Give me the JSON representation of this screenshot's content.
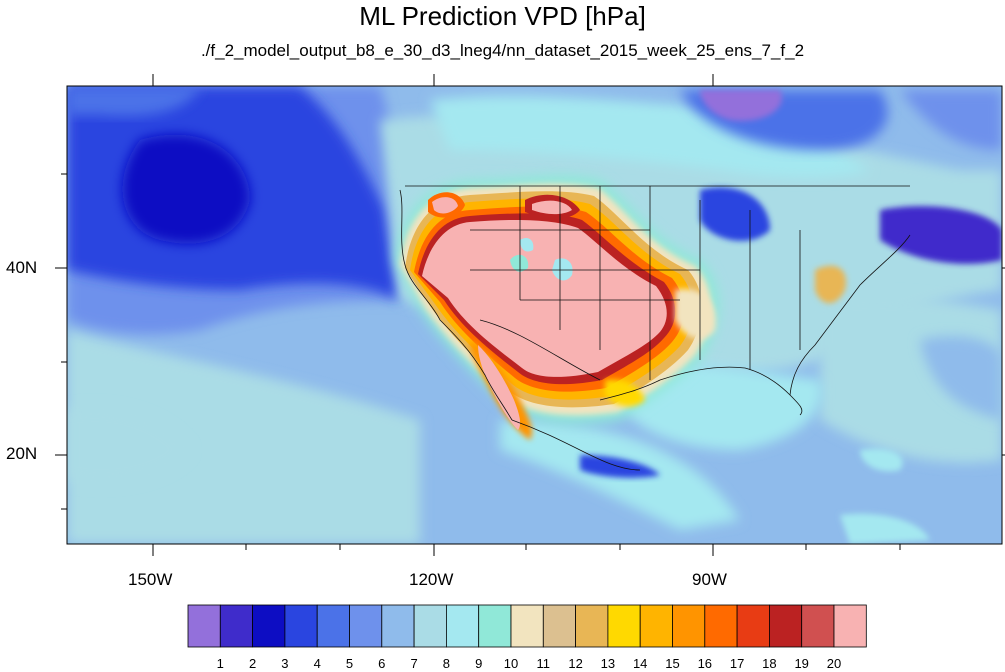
{
  "title": "ML Prediction VPD [hPa]",
  "subtitle": "./f_2_model_output_b8_e_30_d3_lneg4/nn_dataset_2015_week_25_ens_7_f_2",
  "axes": {
    "lat_labels": [
      "40N",
      "20N"
    ],
    "lon_labels": [
      "150W",
      "120W",
      "90W"
    ]
  },
  "colorbar": {
    "labels": [
      "1",
      "2",
      "3",
      "4",
      "5",
      "6",
      "7",
      "8",
      "9",
      "10",
      "11",
      "12",
      "13",
      "14",
      "15",
      "16",
      "17",
      "18",
      "19",
      "20"
    ],
    "colors": [
      "#9370db",
      "#3f2ccb",
      "#0d0dc3",
      "#2a45e0",
      "#4b72e8",
      "#6e91ec",
      "#8fbbeb",
      "#aadce6",
      "#a4e8f0",
      "#90e8d8",
      "#f2e4bf",
      "#dcc090",
      "#e8b655",
      "#ffd900",
      "#ffb400",
      "#ff9400",
      "#ff6a00",
      "#e83c14",
      "#bb2222",
      "#d05050",
      "#f8b2b2"
    ]
  },
  "map": {
    "region": "North America / Eastern Pacific",
    "lon_range": [
      -160,
      -62
    ],
    "lat_range": [
      10,
      60
    ],
    "variable": "VPD",
    "units": "hPa"
  }
}
